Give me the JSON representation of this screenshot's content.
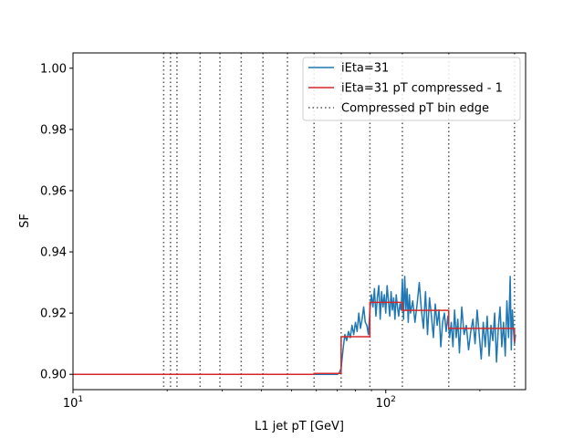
{
  "chart_data": {
    "type": "line",
    "xlabel": "L1 jet pT [GeV]",
    "ylabel": "SF",
    "xscale": "log",
    "xlim": [
      10,
      280
    ],
    "ylim": [
      0.895,
      1.005
    ],
    "x_ticks": [
      {
        "value": 10,
        "base": "10",
        "exp": "1"
      },
      {
        "value": 100,
        "base": "10",
        "exp": "2"
      }
    ],
    "y_ticks": [
      "0.90",
      "0.92",
      "0.94",
      "0.96",
      "0.98",
      "1.00"
    ],
    "grid": false,
    "legend_position": "top-right",
    "colors": {
      "raw": "#1f77b4",
      "compressed": "#d62728",
      "edges": "#555555"
    },
    "series": [
      {
        "name": "iEta=31",
        "style": "solid-blue",
        "x": [
          10,
          20,
          30,
          40,
          50,
          60,
          66,
          68,
          70,
          71,
          72,
          73,
          74,
          75,
          76,
          77,
          78,
          79,
          80,
          81,
          82,
          83,
          84,
          85,
          86,
          87,
          88,
          89,
          90,
          91,
          92,
          93,
          94,
          95,
          96,
          97,
          98,
          99,
          100,
          101,
          102,
          103,
          104,
          105,
          106,
          107,
          108,
          109,
          110,
          111,
          112,
          113,
          114,
          115,
          116,
          117,
          118,
          119,
          120,
          122,
          124,
          126,
          128,
          130,
          132,
          134,
          136,
          138,
          140,
          142,
          144,
          146,
          148,
          150,
          152,
          154,
          156,
          158,
          160,
          162,
          164,
          166,
          168,
          170,
          172,
          175,
          178,
          181,
          184,
          187,
          190,
          193,
          196,
          199,
          202,
          205,
          208,
          211,
          214,
          217,
          220,
          223,
          226,
          229,
          232,
          235,
          238,
          241,
          244,
          247,
          250,
          252,
          254,
          256,
          258,
          260
        ],
        "y": [
          0.9,
          0.9,
          0.9,
          0.9,
          0.9,
          0.9,
          0.9,
          0.9,
          0.9,
          0.9005,
          0.902,
          0.908,
          0.913,
          0.911,
          0.914,
          0.912,
          0.916,
          0.913,
          0.917,
          0.914,
          0.92,
          0.915,
          0.918,
          0.922,
          0.917,
          0.916,
          0.913,
          0.921,
          0.926,
          0.922,
          0.928,
          0.919,
          0.925,
          0.929,
          0.918,
          0.927,
          0.922,
          0.926,
          0.92,
          0.929,
          0.924,
          0.919,
          0.927,
          0.921,
          0.925,
          0.918,
          0.926,
          0.922,
          0.919,
          0.923,
          0.921,
          0.931,
          0.918,
          0.932,
          0.921,
          0.928,
          0.917,
          0.926,
          0.92,
          0.924,
          0.917,
          0.923,
          0.93,
          0.921,
          0.915,
          0.927,
          0.913,
          0.925,
          0.919,
          0.912,
          0.923,
          0.916,
          0.921,
          0.909,
          0.917,
          0.92,
          0.914,
          0.919,
          0.912,
          0.917,
          0.909,
          0.921,
          0.912,
          0.918,
          0.907,
          0.922,
          0.913,
          0.916,
          0.908,
          0.914,
          0.918,
          0.91,
          0.921,
          0.913,
          0.905,
          0.917,
          0.909,
          0.919,
          0.906,
          0.916,
          0.911,
          0.92,
          0.904,
          0.915,
          0.922,
          0.909,
          0.917,
          0.906,
          0.924,
          0.912,
          0.932,
          0.908,
          0.921,
          0.915,
          0.91,
          0.913
        ]
      },
      {
        "name": "iEta=31 pT compressed - 1",
        "style": "step-red",
        "x": [
          10,
          59,
          59,
          72,
          72,
          89,
          89,
          113,
          113,
          159,
          159,
          258,
          258
        ],
        "y": [
          0.9,
          0.9,
          0.9003,
          0.9003,
          0.9123,
          0.9123,
          0.9235,
          0.9235,
          0.9209,
          0.9209,
          0.915,
          0.915,
          0.9105
        ]
      },
      {
        "name": "Compressed pT bin edge",
        "style": "dotted-vertical",
        "x": [
          19.5,
          20.5,
          21.5,
          25.5,
          29.5,
          34.5,
          40.5,
          48.5,
          59,
          72,
          89,
          113,
          159,
          258
        ]
      }
    ]
  }
}
